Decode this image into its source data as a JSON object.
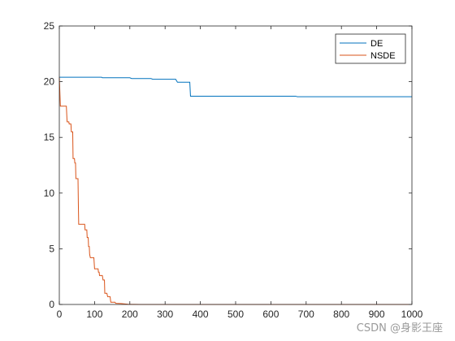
{
  "chart_data": {
    "type": "line",
    "xlim": [
      0,
      1000
    ],
    "ylim": [
      0,
      25
    ],
    "x_ticks": [
      0,
      100,
      200,
      300,
      400,
      500,
      600,
      700,
      800,
      900,
      1000
    ],
    "y_ticks": [
      0,
      5,
      10,
      15,
      20,
      25
    ],
    "legend_position": "top-right",
    "grid": false,
    "series": [
      {
        "name": "DE",
        "color": "#0072BD",
        "points": [
          [
            0,
            20.4
          ],
          [
            120,
            20.4
          ],
          [
            122,
            20.35
          ],
          [
            200,
            20.35
          ],
          [
            205,
            20.28
          ],
          [
            260,
            20.28
          ],
          [
            265,
            20.22
          ],
          [
            330,
            20.22
          ],
          [
            335,
            19.95
          ],
          [
            370,
            19.95
          ],
          [
            372,
            18.7
          ],
          [
            670,
            18.7
          ],
          [
            675,
            18.65
          ],
          [
            1000,
            18.65
          ]
        ]
      },
      {
        "name": "NSDE",
        "color": "#D95319",
        "points": [
          [
            0,
            20.4
          ],
          [
            3,
            17.8
          ],
          [
            20,
            17.8
          ],
          [
            22,
            16.4
          ],
          [
            27,
            16.4
          ],
          [
            28,
            16.2
          ],
          [
            33,
            16.2
          ],
          [
            34,
            15.5
          ],
          [
            38,
            15.5
          ],
          [
            39,
            13.1
          ],
          [
            43,
            13.1
          ],
          [
            44,
            12.7
          ],
          [
            46,
            12.7
          ],
          [
            47,
            11.3
          ],
          [
            53,
            11.3
          ],
          [
            54,
            9.0
          ],
          [
            55,
            7.2
          ],
          [
            72,
            7.2
          ],
          [
            73,
            6.7
          ],
          [
            78,
            6.7
          ],
          [
            79,
            6.0
          ],
          [
            82,
            6.0
          ],
          [
            83,
            5.2
          ],
          [
            85,
            5.2
          ],
          [
            86,
            4.5
          ],
          [
            88,
            4.2
          ],
          [
            98,
            4.2
          ],
          [
            100,
            3.2
          ],
          [
            110,
            3.2
          ],
          [
            111,
            2.9
          ],
          [
            113,
            2.9
          ],
          [
            114,
            2.6
          ],
          [
            122,
            2.6
          ],
          [
            124,
            2.2
          ],
          [
            128,
            2.2
          ],
          [
            129,
            1.0
          ],
          [
            135,
            1.0
          ],
          [
            137,
            0.7
          ],
          [
            144,
            0.7
          ],
          [
            146,
            0.2
          ],
          [
            158,
            0.2
          ],
          [
            160,
            0.1
          ],
          [
            175,
            0.08
          ],
          [
            195,
            0.02
          ],
          [
            230,
            0.0
          ],
          [
            1000,
            0.0
          ]
        ]
      }
    ]
  },
  "watermark": "CSDN @身影王座"
}
